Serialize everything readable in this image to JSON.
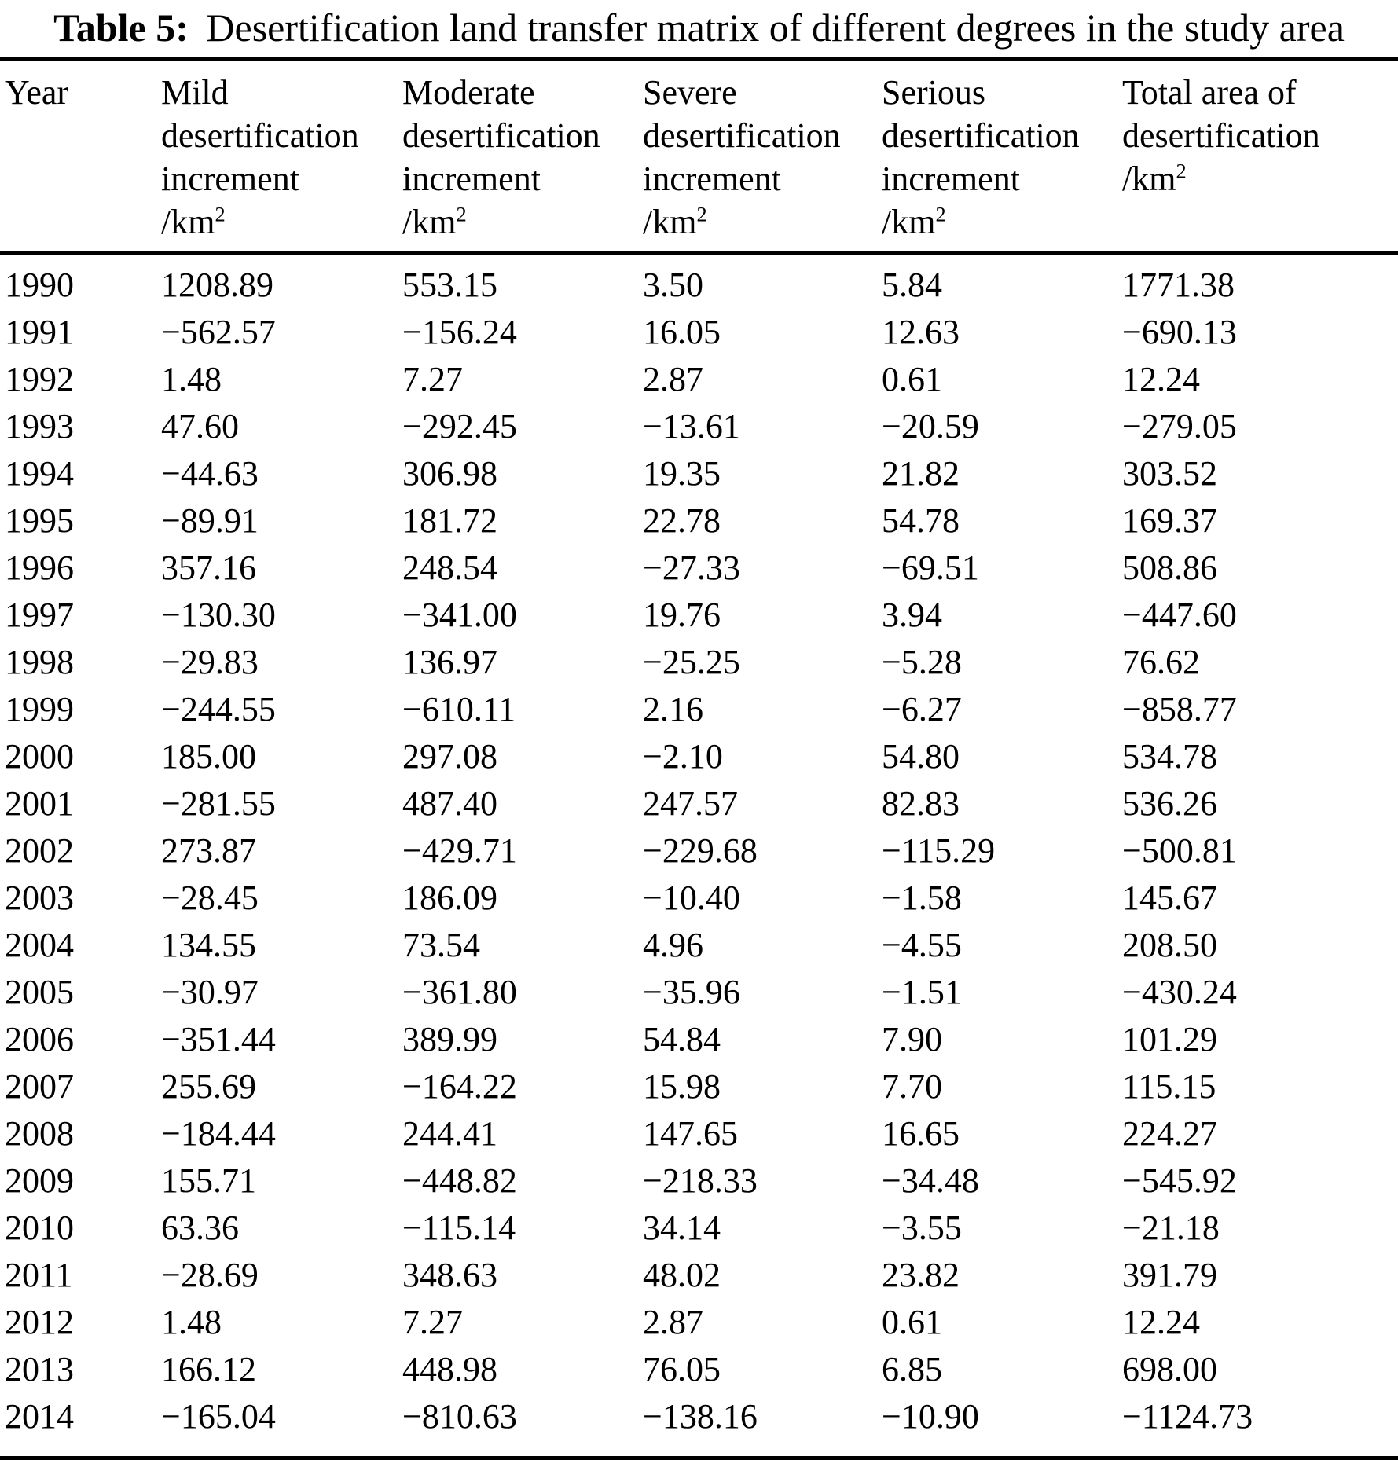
{
  "page": {
    "background": "#ffffff",
    "text_color": "#000000"
  },
  "title": {
    "prefix": "Table 5:",
    "text": "Desertification land transfer matrix of different degrees in the study area"
  },
  "table": {
    "header": {
      "columns": [
        {
          "id": "year",
          "lines": [
            "Year"
          ]
        },
        {
          "id": "mild",
          "lines": [
            "Mild",
            "desertification",
            "increment",
            "/km^2"
          ]
        },
        {
          "id": "moderate",
          "lines": [
            "Moderate",
            "desertification",
            "increment",
            "/km^2"
          ]
        },
        {
          "id": "severe",
          "lines": [
            "Severe",
            "desertification",
            "increment",
            "/km^2"
          ]
        },
        {
          "id": "serious",
          "lines": [
            "Serious",
            "desertification",
            "increment",
            "/km^2"
          ]
        },
        {
          "id": "total",
          "lines": [
            "Total area of",
            "desertification",
            "/km^2"
          ]
        }
      ]
    },
    "rows": [
      [
        "1990",
        "1208.89",
        "553.15",
        "3.50",
        "5.84",
        "1771.38"
      ],
      [
        "1991",
        "−562.57",
        "−156.24",
        "16.05",
        "12.63",
        "−690.13"
      ],
      [
        "1992",
        "1.48",
        "7.27",
        "2.87",
        "0.61",
        "12.24"
      ],
      [
        "1993",
        "47.60",
        "−292.45",
        "−13.61",
        "−20.59",
        "−279.05"
      ],
      [
        "1994",
        "−44.63",
        "306.98",
        "19.35",
        "21.82",
        "303.52"
      ],
      [
        "1995",
        "−89.91",
        "181.72",
        "22.78",
        "54.78",
        "169.37"
      ],
      [
        "1996",
        "357.16",
        "248.54",
        "−27.33",
        "−69.51",
        "508.86"
      ],
      [
        "1997",
        "−130.30",
        "−341.00",
        "19.76",
        "3.94",
        "−447.60"
      ],
      [
        "1998",
        "−29.83",
        "136.97",
        "−25.25",
        "−5.28",
        "76.62"
      ],
      [
        "1999",
        "−244.55",
        "−610.11",
        "2.16",
        "−6.27",
        "−858.77"
      ],
      [
        "2000",
        "185.00",
        "297.08",
        "−2.10",
        "54.80",
        "534.78"
      ],
      [
        "2001",
        "−281.55",
        "487.40",
        "247.57",
        "82.83",
        "536.26"
      ],
      [
        "2002",
        "273.87",
        "−429.71",
        "−229.68",
        "−115.29",
        "−500.81"
      ],
      [
        "2003",
        "−28.45",
        "186.09",
        "−10.40",
        "−1.58",
        "145.67"
      ],
      [
        "2004",
        "134.55",
        "73.54",
        "4.96",
        "−4.55",
        "208.50"
      ],
      [
        "2005",
        "−30.97",
        "−361.80",
        "−35.96",
        "−1.51",
        "−430.24"
      ],
      [
        "2006",
        "−351.44",
        "389.99",
        "54.84",
        "7.90",
        "101.29"
      ],
      [
        "2007",
        "255.69",
        "−164.22",
        "15.98",
        "7.70",
        "115.15"
      ],
      [
        "2008",
        "−184.44",
        "244.41",
        "147.65",
        "16.65",
        "224.27"
      ],
      [
        "2009",
        "155.71",
        "−448.82",
        "−218.33",
        "−34.48",
        "−545.92"
      ],
      [
        "2010",
        "63.36",
        "−115.14",
        "34.14",
        "−3.55",
        "−21.18"
      ],
      [
        "2011",
        "−28.69",
        "348.63",
        "48.02",
        "23.82",
        "391.79"
      ],
      [
        "2012",
        "1.48",
        "7.27",
        "2.87",
        "0.61",
        "12.24"
      ],
      [
        "2013",
        "166.12",
        "448.98",
        "76.05",
        "6.85",
        "698.00"
      ],
      [
        "2014",
        "−165.04",
        "−810.63",
        "−138.16",
        "−10.90",
        "−1124.73"
      ]
    ]
  }
}
